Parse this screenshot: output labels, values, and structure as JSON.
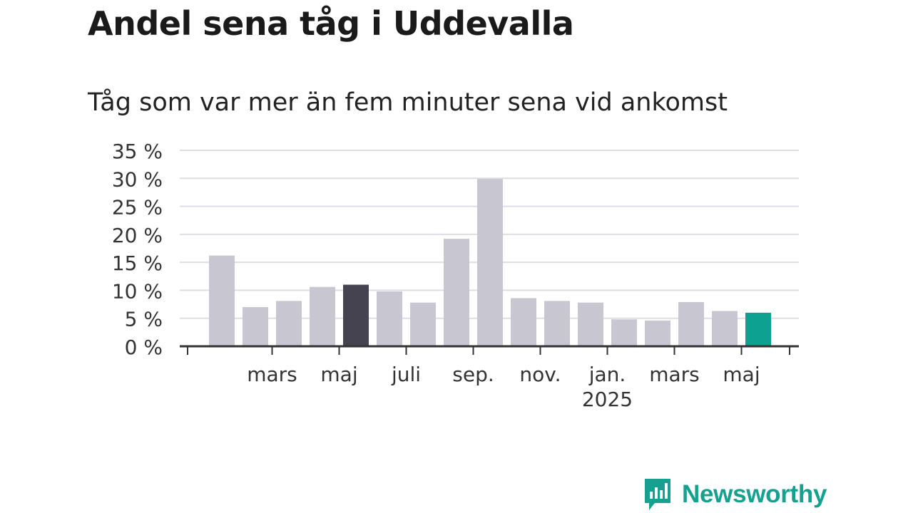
{
  "title": "Andel sena tåg i Uddevalla",
  "subtitle": "Tåg som var mer än fem minuter sena vid ankomst",
  "brand": {
    "name": "Newsworthy",
    "logo_icon": "bar-chart-speech-bubble-icon",
    "color": "#16a08f"
  },
  "chart_data": {
    "type": "bar",
    "ylim": [
      0,
      35
    ],
    "ytick_values": [
      0,
      5,
      10,
      15,
      20,
      25,
      30,
      35
    ],
    "ytick_labels": [
      "0 %",
      "5 %",
      "10 %",
      "15 %",
      "20 %",
      "25 %",
      "30 %",
      "35 %"
    ],
    "grid": true,
    "values": [
      16.2,
      7.0,
      8.1,
      10.6,
      11.0,
      9.8,
      7.8,
      19.2,
      29.9,
      8.6,
      8.1,
      7.8,
      4.8,
      4.6,
      7.9,
      6.3,
      6.0
    ],
    "highlight": {
      "index": 4,
      "color": "#44434f"
    },
    "latest": {
      "index": 16,
      "color": "#0ca190"
    },
    "bar_color": "#c7c6d1",
    "xtick_labels": [
      {
        "label": "mars",
        "sub": "",
        "after_bar": 1
      },
      {
        "label": "maj",
        "sub": "",
        "after_bar": 3
      },
      {
        "label": "juli",
        "sub": "",
        "after_bar": 5
      },
      {
        "label": "sep.",
        "sub": "",
        "after_bar": 7
      },
      {
        "label": "nov.",
        "sub": "",
        "after_bar": 9
      },
      {
        "label": "jan.",
        "sub": "2025",
        "after_bar": 11
      },
      {
        "label": "mars",
        "sub": "",
        "after_bar": 13
      },
      {
        "label": "maj",
        "sub": "",
        "after_bar": 15
      }
    ]
  }
}
